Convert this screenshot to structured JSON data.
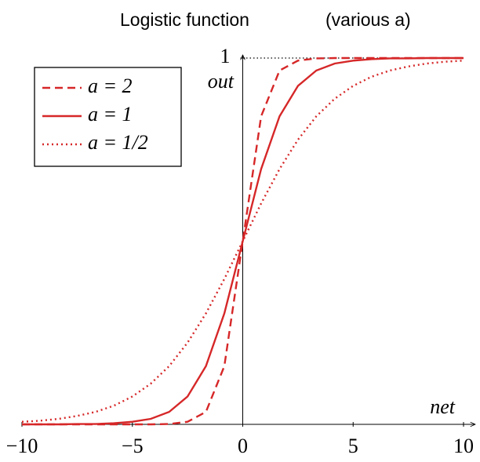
{
  "chart_data": {
    "type": "line",
    "title": "Logistic function",
    "subtitle": "(various  a)",
    "x_label": "net",
    "y_label": "out",
    "x": [
      -10,
      -9.167,
      -8.333,
      -7.5,
      -6.667,
      -5.833,
      -5,
      -4.167,
      -3.333,
      -2.5,
      -1.667,
      -0.833,
      0,
      0.833,
      1.667,
      2.5,
      3.333,
      4.167,
      5,
      5.833,
      6.667,
      7.5,
      8.333,
      9.167,
      10
    ],
    "series": [
      {
        "name": "a = 2",
        "color": "#d62728",
        "dash": "dashed",
        "values": [
          0,
          0,
          0,
          0,
          0,
          0,
          0,
          0,
          0.001,
          0.007,
          0.034,
          0.159,
          0.5,
          0.841,
          0.966,
          0.993,
          0.999,
          1,
          1,
          1,
          1,
          1,
          1,
          1,
          1
        ]
      },
      {
        "name": "a = 1",
        "color": "#d62728",
        "dash": "solid",
        "values": [
          0,
          0,
          0,
          0.001,
          0.001,
          0.003,
          0.007,
          0.015,
          0.034,
          0.076,
          0.159,
          0.303,
          0.5,
          0.697,
          0.841,
          0.924,
          0.966,
          0.985,
          0.993,
          0.997,
          0.999,
          0.999,
          1,
          1,
          1
        ]
      },
      {
        "name": "a = 1/2",
        "color": "#d62728",
        "dash": "dotted",
        "values": [
          0.007,
          0.01,
          0.015,
          0.023,
          0.034,
          0.051,
          0.076,
          0.111,
          0.159,
          0.223,
          0.303,
          0.397,
          0.5,
          0.603,
          0.697,
          0.777,
          0.841,
          0.889,
          0.924,
          0.949,
          0.966,
          0.977,
          0.985,
          0.99,
          0.993
        ]
      }
    ],
    "xlim": [
      -10,
      10
    ],
    "ylim": [
      0,
      1
    ],
    "xticks": [
      {
        "value": -10,
        "label": "−10"
      },
      {
        "value": -5,
        "label": "−5"
      },
      0,
      5,
      10
    ],
    "yticks": [
      1
    ],
    "legend": "upper left"
  }
}
